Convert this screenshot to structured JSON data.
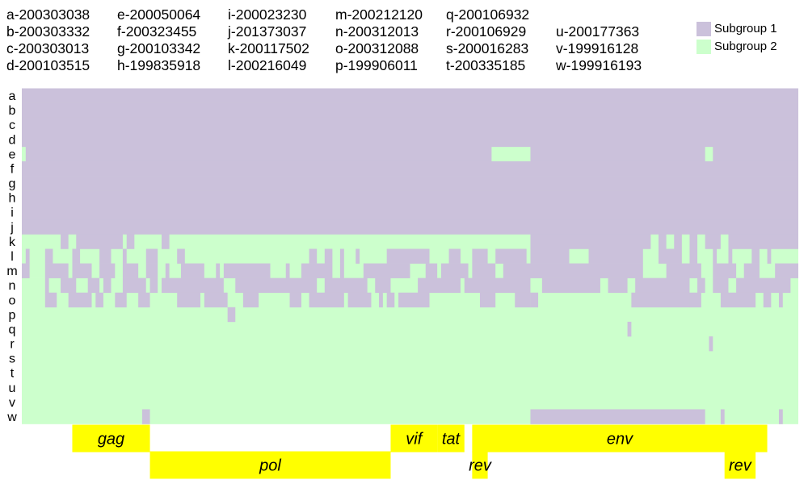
{
  "chart_data": {
    "type": "heatmap",
    "title": "",
    "xlabel": "",
    "ylabel": "",
    "colors": {
      "subgroup_1": "#cbc1db",
      "subgroup_2": "#ccffcc",
      "gene": "#ffff00"
    },
    "legend": {
      "placement": "top-right",
      "items": [
        {
          "label": "Subgroup 1",
          "color": "#cbc1db",
          "value": 1
        },
        {
          "label": "Subgroup 2",
          "color": "#ccffcc",
          "value": 2
        }
      ]
    },
    "sequences": [
      {
        "row": "a",
        "id": "a-200303038"
      },
      {
        "row": "b",
        "id": "b-200303332"
      },
      {
        "row": "c",
        "id": "c-200303013"
      },
      {
        "row": "d",
        "id": "d-200103515"
      },
      {
        "row": "e",
        "id": "e-200050064"
      },
      {
        "row": "f",
        "id": "f-200323455"
      },
      {
        "row": "g",
        "id": "g-200103342"
      },
      {
        "row": "h",
        "id": "h-199835918"
      },
      {
        "row": "i",
        "id": "i-200023230"
      },
      {
        "row": "j",
        "id": "j-201373037"
      },
      {
        "row": "k",
        "id": "k-200117502"
      },
      {
        "row": "l",
        "id": "l-200216049"
      },
      {
        "row": "m",
        "id": "m-200212120"
      },
      {
        "row": "n",
        "id": "n-200312013"
      },
      {
        "row": "o",
        "id": "o-200312088"
      },
      {
        "row": "p",
        "id": "p-199906011"
      },
      {
        "row": "q",
        "id": "q-200106932"
      },
      {
        "row": "r",
        "id": "r-200106929"
      },
      {
        "row": "s",
        "id": "s-200016283"
      },
      {
        "row": "t",
        "id": "t-200335185"
      },
      {
        "row": "u",
        "id": "u-200177363"
      },
      {
        "row": "v",
        "id": "v-199916128"
      },
      {
        "row": "w",
        "id": "w-199916193"
      }
    ],
    "genome_range": [
      0,
      100
    ],
    "subgroup_1_segments": {
      "a": [
        [
          0,
          100
        ]
      ],
      "b": [
        [
          0,
          100
        ]
      ],
      "c": [
        [
          0,
          100
        ]
      ],
      "d": [
        [
          0,
          100
        ]
      ],
      "e": [
        [
          0.5,
          60.5
        ],
        [
          65.5,
          88
        ],
        [
          89,
          100
        ]
      ],
      "f": [
        [
          0,
          100
        ]
      ],
      "g": [
        [
          0,
          100
        ]
      ],
      "h": [
        [
          0,
          100
        ]
      ],
      "i": [
        [
          0,
          100
        ]
      ],
      "j": [
        [
          0,
          100
        ]
      ],
      "k": [
        [
          5,
          6
        ],
        [
          7,
          13
        ],
        [
          13.5,
          14.5
        ],
        [
          18,
          19
        ],
        [
          65.5,
          81
        ],
        [
          82,
          83
        ],
        [
          84,
          85
        ],
        [
          86,
          87
        ],
        [
          88,
          90
        ],
        [
          91,
          100
        ]
      ],
      "l": [
        [
          0.5,
          1
        ],
        [
          3,
          4
        ],
        [
          6.5,
          7.5
        ],
        [
          10,
          11.5
        ],
        [
          13,
          13.5
        ],
        [
          16,
          17.5
        ],
        [
          20,
          21
        ],
        [
          37,
          38
        ],
        [
          39,
          40
        ],
        [
          41,
          41.5
        ],
        [
          43,
          43.5
        ],
        [
          47,
          52.5
        ],
        [
          55,
          56.5
        ],
        [
          58,
          60
        ],
        [
          61,
          65
        ],
        [
          65.5,
          70.5
        ],
        [
          73,
          80
        ],
        [
          82,
          85
        ],
        [
          86,
          87
        ],
        [
          89,
          89.5
        ],
        [
          91,
          91.5
        ],
        [
          94,
          95
        ],
        [
          96,
          96.5
        ]
      ],
      "m": [
        [
          0,
          1
        ],
        [
          3,
          6
        ],
        [
          6.5,
          9
        ],
        [
          10,
          12
        ],
        [
          13,
          15
        ],
        [
          16,
          17.5
        ],
        [
          18.5,
          19
        ],
        [
          20.5,
          23.5
        ],
        [
          25,
          25.5
        ],
        [
          26,
          32
        ],
        [
          34,
          34.5
        ],
        [
          36,
          40
        ],
        [
          41,
          41.5
        ],
        [
          44,
          50
        ],
        [
          52,
          53.5
        ],
        [
          54,
          57.5
        ],
        [
          58,
          61
        ],
        [
          62,
          80
        ],
        [
          83,
          87.5
        ],
        [
          89,
          92
        ],
        [
          93,
          95
        ],
        [
          97,
          100
        ]
      ],
      "n": [
        [
          3,
          3.5
        ],
        [
          5,
          7
        ],
        [
          8.5,
          10
        ],
        [
          10.5,
          11.5
        ],
        [
          13,
          16
        ],
        [
          16.5,
          17.5
        ],
        [
          18,
          26
        ],
        [
          27.5,
          38
        ],
        [
          39,
          44.5
        ],
        [
          45.5,
          47.5
        ],
        [
          51,
          56.5
        ],
        [
          57,
          65.5
        ],
        [
          67,
          74.5
        ],
        [
          75.5,
          78
        ],
        [
          79,
          86
        ],
        [
          87,
          88
        ],
        [
          89,
          91
        ],
        [
          92,
          99
        ]
      ],
      "o": [
        [
          3,
          4.5
        ],
        [
          6,
          9
        ],
        [
          9.5,
          10.5
        ],
        [
          12,
          13.5
        ],
        [
          15,
          16.5
        ],
        [
          20,
          23
        ],
        [
          23.5,
          26.5
        ],
        [
          28.5,
          30.5
        ],
        [
          34.5,
          36
        ],
        [
          37,
          41.5
        ],
        [
          42,
          45
        ],
        [
          46,
          46.5
        ],
        [
          47,
          48
        ],
        [
          48.5,
          52.5
        ],
        [
          59,
          61
        ],
        [
          63.5,
          65.5
        ],
        [
          65.5,
          66.5
        ],
        [
          78.5,
          86
        ],
        [
          86,
          87.5
        ],
        [
          90,
          94.5
        ],
        [
          95.5,
          96.5
        ],
        [
          97.5,
          98
        ]
      ],
      "p": [
        [
          26.5,
          27.5
        ]
      ],
      "q": [
        [
          78,
          78.5
        ]
      ],
      "r": [
        [
          88.5,
          89
        ]
      ],
      "s": [],
      "t": [],
      "u": [],
      "v": [],
      "w": [
        [
          15.5,
          16.5
        ],
        [
          65.5,
          88
        ],
        [
          90,
          90.5
        ],
        [
          97.5,
          98
        ]
      ]
    },
    "genes": [
      {
        "name": "gag",
        "start": 6.5,
        "end": 16.5,
        "track": 1
      },
      {
        "name": "pol",
        "start": 16.5,
        "end": 47.5,
        "track": 2
      },
      {
        "name": "vif",
        "start": 47.5,
        "end": 53.5,
        "track": 1
      },
      {
        "name": "tat",
        "start": 53.5,
        "end": 57,
        "track": 1
      },
      {
        "name": "env",
        "start": 58,
        "end": 96,
        "track": 1
      },
      {
        "name": "rev",
        "start": 58,
        "end": 60,
        "track": 2
      },
      {
        "name": "rev",
        "start": 90.5,
        "end": 94.5,
        "track": 2
      }
    ]
  }
}
